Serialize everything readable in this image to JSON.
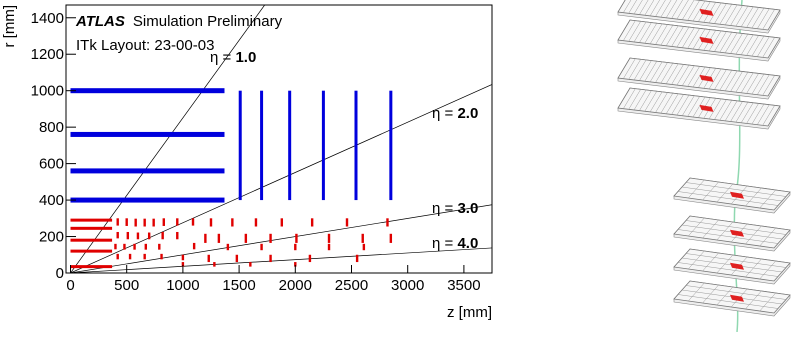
{
  "chart_data": {
    "type": "layout",
    "title": {
      "experiment": "ATLAS",
      "status": "Simulation Preliminary"
    },
    "subtitle": "ITk Layout: 23-00-03",
    "x_label": "z [mm]",
    "y_label": "r [mm]",
    "xlim": [
      -40,
      3750
    ],
    "ylim": [
      0,
      1470
    ],
    "xticks": [
      0,
      500,
      1000,
      1500,
      2000,
      2500,
      3000,
      3500
    ],
    "yticks": [
      0,
      200,
      400,
      600,
      800,
      1000,
      1200,
      1400
    ],
    "strip_color": "#0000dd",
    "pixel_color": "#e00000",
    "strip_barrel": {
      "r": [
        1000,
        760,
        560,
        400
      ],
      "z_end": 1370
    },
    "strip_endcap": {
      "z": [
        1510,
        1700,
        1950,
        2250,
        2540,
        2850
      ],
      "r_min": 400,
      "r_max": 1000
    },
    "pixel_barrel": {
      "r": [
        290,
        245,
        180,
        120,
        35
      ],
      "z_end": 370
    },
    "pixel_rings": [
      {
        "z": 420,
        "r0": 260,
        "r1": 300
      },
      {
        "z": 500,
        "r0": 258,
        "r1": 300
      },
      {
        "z": 580,
        "r0": 255,
        "r1": 298
      },
      {
        "z": 660,
        "r0": 255,
        "r1": 298
      },
      {
        "z": 740,
        "r0": 255,
        "r1": 298
      },
      {
        "z": 830,
        "r0": 258,
        "r1": 300
      },
      {
        "z": 950,
        "r0": 260,
        "r1": 300
      },
      {
        "z": 1090,
        "r0": 260,
        "r1": 300
      },
      {
        "z": 1250,
        "r0": 255,
        "r1": 300
      },
      {
        "z": 1440,
        "r0": 255,
        "r1": 300
      },
      {
        "z": 1650,
        "r0": 255,
        "r1": 300
      },
      {
        "z": 1880,
        "r0": 255,
        "r1": 300
      },
      {
        "z": 2150,
        "r0": 255,
        "r1": 300
      },
      {
        "z": 2460,
        "r0": 255,
        "r1": 300
      },
      {
        "z": 2820,
        "r0": 255,
        "r1": 300
      },
      {
        "z": 420,
        "r0": 190,
        "r1": 225
      },
      {
        "z": 510,
        "r0": 185,
        "r1": 225
      },
      {
        "z": 600,
        "r0": 185,
        "r1": 222
      },
      {
        "z": 700,
        "r0": 185,
        "r1": 222
      },
      {
        "z": 820,
        "r0": 185,
        "r1": 225
      },
      {
        "z": 950,
        "r0": 185,
        "r1": 225
      },
      {
        "z": 1200,
        "r0": 165,
        "r1": 215
      },
      {
        "z": 1320,
        "r0": 165,
        "r1": 215
      },
      {
        "z": 1560,
        "r0": 165,
        "r1": 215
      },
      {
        "z": 1780,
        "r0": 165,
        "r1": 215
      },
      {
        "z": 2010,
        "r0": 165,
        "r1": 215
      },
      {
        "z": 2300,
        "r0": 165,
        "r1": 215
      },
      {
        "z": 2600,
        "r0": 165,
        "r1": 215
      },
      {
        "z": 2850,
        "r0": 165,
        "r1": 215
      },
      {
        "z": 400,
        "r0": 130,
        "r1": 160
      },
      {
        "z": 480,
        "r0": 128,
        "r1": 160
      },
      {
        "z": 570,
        "r0": 128,
        "r1": 160
      },
      {
        "z": 670,
        "r0": 128,
        "r1": 160
      },
      {
        "z": 790,
        "r0": 128,
        "r1": 160
      },
      {
        "z": 1100,
        "r0": 130,
        "r1": 165
      },
      {
        "z": 1400,
        "r0": 125,
        "r1": 160
      },
      {
        "z": 1700,
        "r0": 125,
        "r1": 160
      },
      {
        "z": 2000,
        "r0": 125,
        "r1": 160
      },
      {
        "z": 2300,
        "r0": 125,
        "r1": 160
      },
      {
        "z": 2610,
        "r0": 125,
        "r1": 160
      },
      {
        "z": 420,
        "r0": 75,
        "r1": 105
      },
      {
        "z": 530,
        "r0": 75,
        "r1": 105
      },
      {
        "z": 660,
        "r0": 75,
        "r1": 105
      },
      {
        "z": 810,
        "r0": 75,
        "r1": 105
      },
      {
        "z": 1000,
        "r0": 70,
        "r1": 100
      },
      {
        "z": 1230,
        "r0": 60,
        "r1": 100
      },
      {
        "z": 1480,
        "r0": 60,
        "r1": 100
      },
      {
        "z": 1780,
        "r0": 60,
        "r1": 100
      },
      {
        "z": 2130,
        "r0": 60,
        "r1": 100
      },
      {
        "z": 2550,
        "r0": 60,
        "r1": 100
      },
      {
        "z": 1000,
        "r0": 35,
        "r1": 60
      },
      {
        "z": 1280,
        "r0": 35,
        "r1": 60
      },
      {
        "z": 1600,
        "r0": 35,
        "r1": 60
      },
      {
        "z": 2000,
        "r0": 35,
        "r1": 60
      }
    ],
    "eta_lines": [
      {
        "prefix": "η = ",
        "eta": {
          "value": 1,
          "label": "1.0"
        }
      },
      {
        "prefix": "η = ",
        "eta": {
          "value": 2,
          "label": "2.0"
        }
      },
      {
        "prefix": "η = ",
        "eta": {
          "value": 3,
          "label": "3.0"
        }
      },
      {
        "prefix": "η = ",
        "eta": {
          "value": 4,
          "label": "4.0"
        }
      }
    ]
  }
}
